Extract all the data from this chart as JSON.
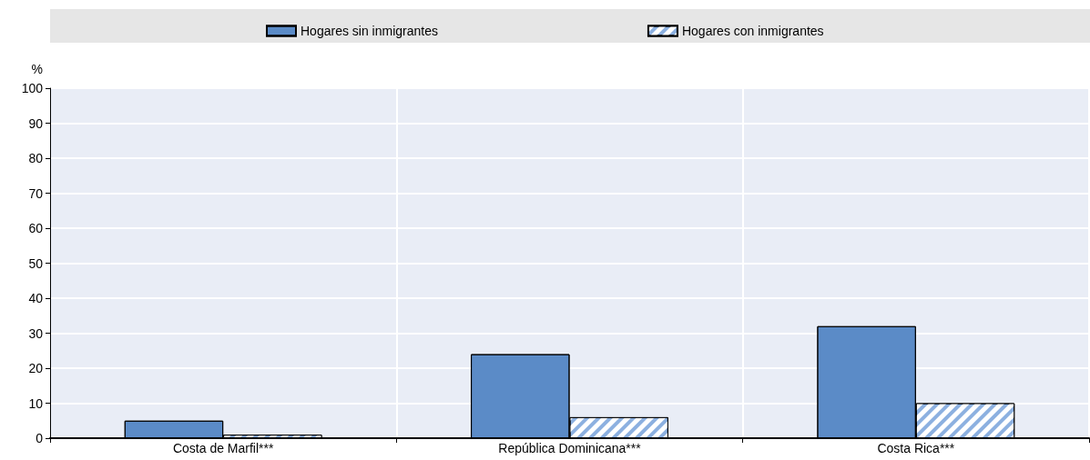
{
  "chart_data": {
    "type": "bar",
    "ylabel": "%",
    "categories": [
      "Costa de Marfil***",
      "República Dominicana***",
      "Costa Rica***"
    ],
    "series": [
      {
        "name": "Hogares sin inmigrantes",
        "color": "#5b8bc7",
        "values": [
          5,
          24,
          32
        ]
      },
      {
        "name": "Hogares con inmigrantes",
        "color": "#8cb0e0",
        "values": [
          1,
          6,
          10
        ]
      }
    ],
    "ylim": [
      0,
      100
    ],
    "yticks": [
      0,
      10,
      20,
      30,
      40,
      50,
      60,
      70,
      80,
      90,
      100
    ],
    "grid": true,
    "legend": "top"
  }
}
